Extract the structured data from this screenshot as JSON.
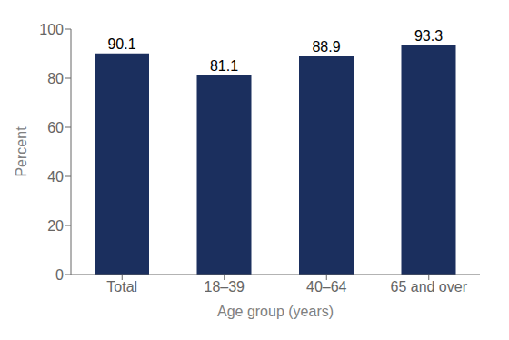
{
  "chart_data": {
    "type": "bar",
    "categories": [
      "Total",
      "18–39",
      "40–64",
      "65 and over"
    ],
    "values": [
      90.1,
      81.1,
      88.9,
      93.3
    ],
    "color": "#1b2f5e",
    "xlabel": "Age group (years)",
    "ylabel": "Percent",
    "ylim": [
      0,
      100
    ],
    "yticks": [
      0,
      20,
      40,
      60,
      80,
      100
    ],
    "grid": false,
    "data_labels": true
  }
}
